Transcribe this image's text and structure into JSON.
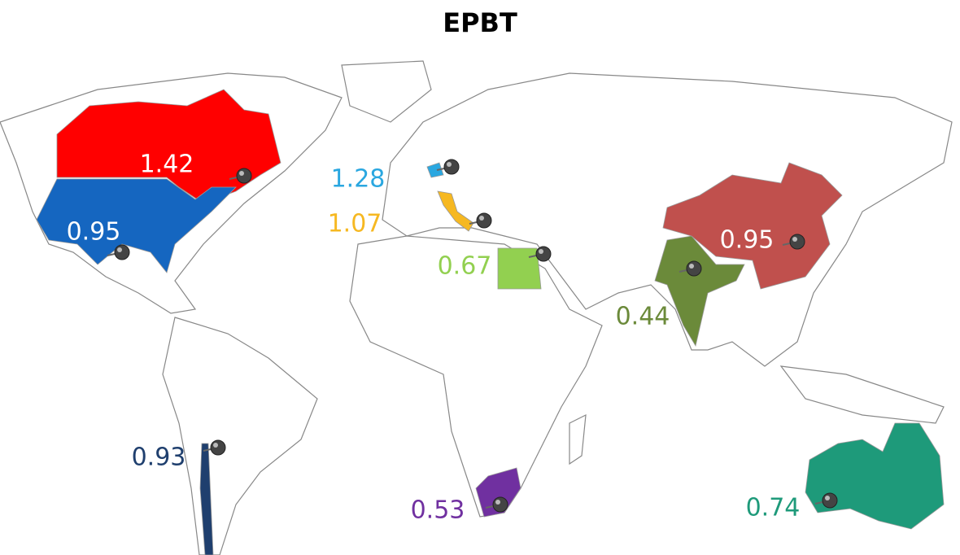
{
  "title": "EPBT",
  "regions": [
    {
      "label": "1.42",
      "color": "#ff0000",
      "label_color": "#ffffff"
    },
    {
      "label": "0.95",
      "color": "#1566c0",
      "label_color": "#ffffff"
    },
    {
      "label": "1.28",
      "color": "#2aa7e0",
      "label_color": "#2aa7e0"
    },
    {
      "label": "1.07",
      "color": "#f6b821",
      "label_color": "#f6b821"
    },
    {
      "label": "0.67",
      "color": "#92d050",
      "label_color": "#92d050"
    },
    {
      "label": "0.44",
      "color": "#6b8a3a",
      "label_color": "#6b8a3a"
    },
    {
      "label": "0.95",
      "color": "#c0504d",
      "label_color": "#ffffff"
    },
    {
      "label": "0.93",
      "color": "#1f3f6e",
      "label_color": "#1f3f6e"
    },
    {
      "label": "0.53",
      "color": "#7030a0",
      "label_color": "#7030a0"
    },
    {
      "label": "0.74",
      "color": "#1e9a7a",
      "label_color": "#1e9a7a"
    }
  ]
}
